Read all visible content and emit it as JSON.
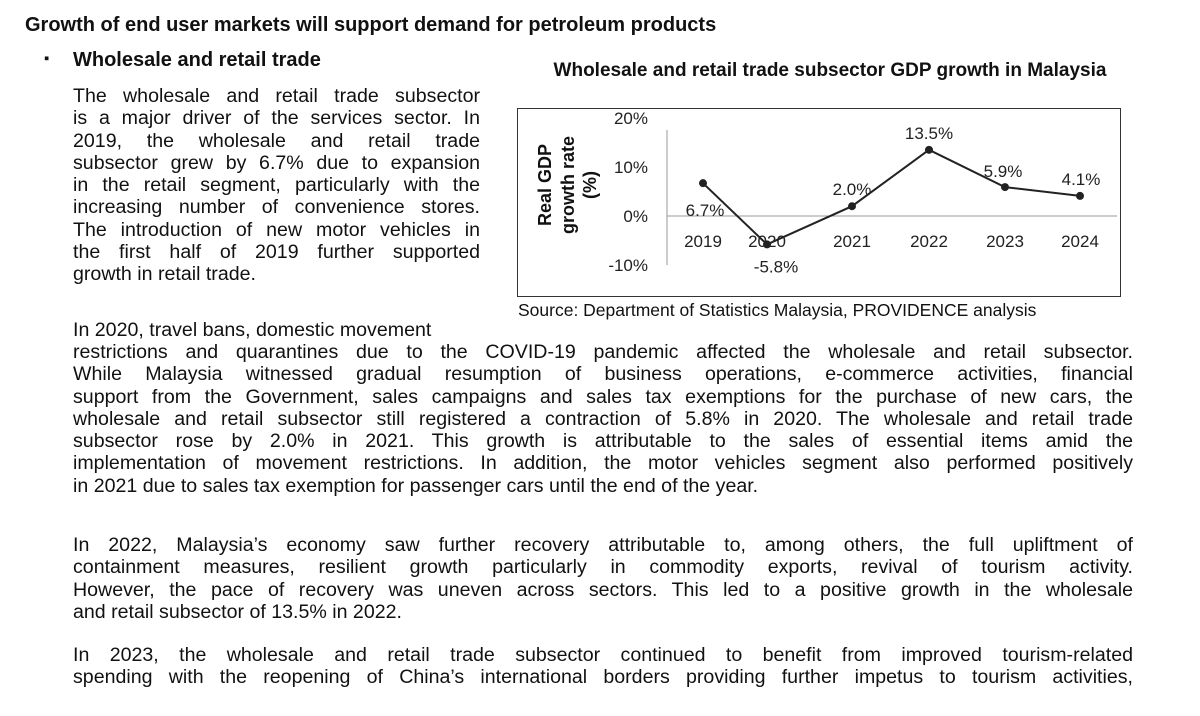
{
  "heading": "Growth of end user markets will support demand for petroleum products",
  "subheading": {
    "bullet": "▪",
    "text": "Wholesale and retail trade"
  },
  "paragraphs": [
    {
      "lines": [
        "The wholesale and retail trade subsector",
        "is a major driver of the services sector. In",
        "2019, the wholesale and retail trade",
        "subsector grew by 6.7% due to expansion",
        "in the retail segment, particularly with the",
        "increasing number of convenience stores.",
        "The introduction of new motor vehicles in",
        "the first half of 2019 further supported",
        "growth in retail trade."
      ]
    },
    {
      "first_line": "In 2020, travel bans, domestic movement",
      "lines": [
        "restrictions and quarantines due to the COVID-19 pandemic affected the wholesale and retail subsector.",
        "While Malaysia witnessed gradual resumption of business operations, e-commerce activities, financial",
        "support from the Government, sales campaigns and sales tax exemptions for the purchase of new cars, the",
        "wholesale and retail subsector still registered a contraction of 5.8% in 2020. The wholesale and retail trade",
        "subsector rose by 2.0% in 2021. This growth is attributable to the sales of essential items amid the",
        "implementation of movement restrictions. In addition, the motor vehicles segment also performed positively",
        "in 2021 due to sales tax exemption for passenger cars until the end of the year."
      ]
    },
    {
      "lines": [
        "In 2022, Malaysia’s economy saw further recovery attributable to, among others, the full upliftment of",
        "containment measures, resilient growth particularly in commodity exports, revival of tourism activity.",
        "However, the pace of recovery was uneven across sectors. This led to a positive growth in the wholesale",
        "and retail subsector of 13.5% in 2022."
      ]
    },
    {
      "lines": [
        "In 2023, the wholesale and retail trade subsector continued to benefit from improved tourism-related",
        "spending with the reopening of China’s international borders providing further impetus to tourism activities,"
      ]
    }
  ],
  "chart_data": {
    "type": "line",
    "title": "Wholesale and retail trade subsector GDP growth in Malaysia",
    "ylabel": "Real GDP growth rate (%)",
    "ylabel_lines": [
      "Real GDP",
      "growth rate",
      "(%)"
    ],
    "xlabel": "",
    "categories": [
      "2019",
      "2020",
      "2021",
      "2022",
      "2023",
      "2024"
    ],
    "values": [
      6.7,
      -5.8,
      2.0,
      13.5,
      5.9,
      4.1
    ],
    "data_labels": [
      "6.7%",
      "-5.8%",
      "2.0%",
      "13.5%",
      "5.9%",
      "4.1%"
    ],
    "yticks": [
      20,
      10,
      0,
      -10
    ],
    "ytick_labels": [
      "20%",
      "10%",
      "0%",
      "-10%"
    ],
    "ylim": [
      -10,
      20
    ],
    "grid": false,
    "line_color": "#222222",
    "source": "Source: Department of Statistics Malaysia, PROVIDENCE analysis"
  }
}
